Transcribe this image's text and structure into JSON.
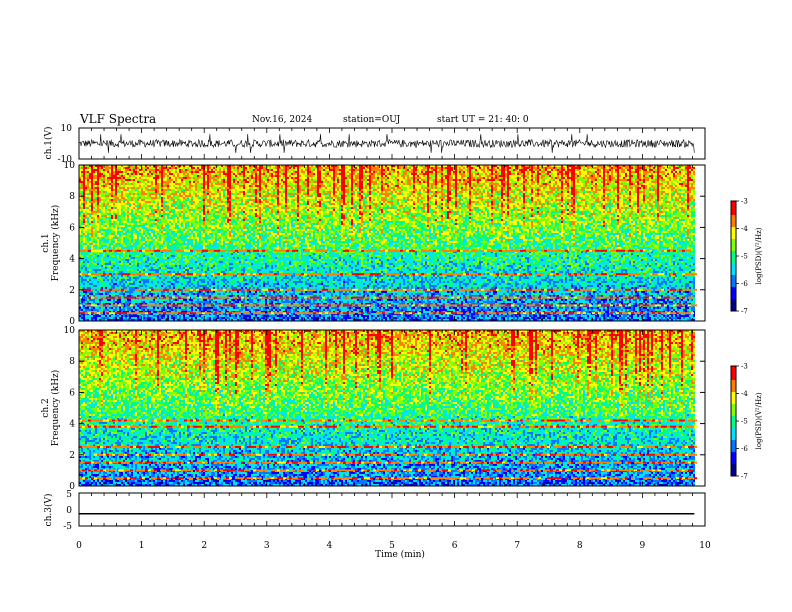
{
  "header": {
    "title": "VLF Spectra",
    "date": "Nov.16, 2024",
    "station": "station=OUJ",
    "start": "start  UT  =   21: 40: 0"
  },
  "chart_data": [
    {
      "type": "line",
      "name_hint": "ch1-waveform",
      "ylabel": "ch.1(V)",
      "ylim": [
        -10,
        10
      ],
      "ytick_labels": [
        "10",
        "-10"
      ],
      "x_range": [
        0,
        9.83
      ],
      "y_description_values": {
        "mean": 0,
        "typical_amplitude": 2.5,
        "max_spike": 6
      }
    },
    {
      "type": "heatmap",
      "name_hint": "ch1-spectrogram",
      "ylabel": "ch.1\nFrequency (kHz)",
      "ylim": [
        0,
        10
      ],
      "ytick_labels": [
        "0",
        "2",
        "4",
        "6",
        "8",
        "10"
      ],
      "x_range": [
        0,
        9.83
      ],
      "colorbar": {
        "label": "log(PSD)(V²/Hz)",
        "range": [
          -7,
          -3
        ],
        "tick_labels": [
          "-3",
          "-4",
          "-5",
          "-6",
          "-7"
        ]
      },
      "bands_khz": [
        0.5,
        1.0,
        1.5,
        2.0,
        3.0,
        4.5
      ]
    },
    {
      "type": "heatmap",
      "name_hint": "ch2-spectrogram",
      "ylabel": "ch.2\nFrequency (kHz)",
      "ylim": [
        0,
        10
      ],
      "ytick_labels": [
        "0",
        "2",
        "4",
        "6",
        "8",
        "10"
      ],
      "x_range": [
        0,
        9.83
      ],
      "colorbar": {
        "label": "log(PSD)(V²/Hz)",
        "range": [
          -7,
          -3
        ],
        "tick_labels": [
          "-3",
          "-4",
          "-5",
          "-6",
          "-7"
        ]
      },
      "bands_khz": [
        0.5,
        1.0,
        1.5,
        2.0,
        2.5,
        3.8,
        4.2
      ]
    },
    {
      "type": "line",
      "name_hint": "ch3-waveform",
      "ylabel": "ch.3(V)",
      "ylim": [
        -5,
        5
      ],
      "ytick_labels": [
        "5",
        "0",
        "-5"
      ],
      "x": [
        0,
        9.83
      ],
      "y": [
        -1.3,
        -1.3
      ]
    }
  ],
  "xaxis": {
    "label": "Time (min)",
    "range": [
      0,
      10
    ],
    "tick_labels": [
      "0",
      "1",
      "2",
      "3",
      "4",
      "5",
      "6",
      "7",
      "8",
      "9",
      "10"
    ]
  },
  "colormap": [
    "#00008a",
    "#0000ff",
    "#0078ff",
    "#00e0ff",
    "#00ff80",
    "#80ff00",
    "#ffff00",
    "#ff8000",
    "#ff0000",
    "#ffffff"
  ]
}
